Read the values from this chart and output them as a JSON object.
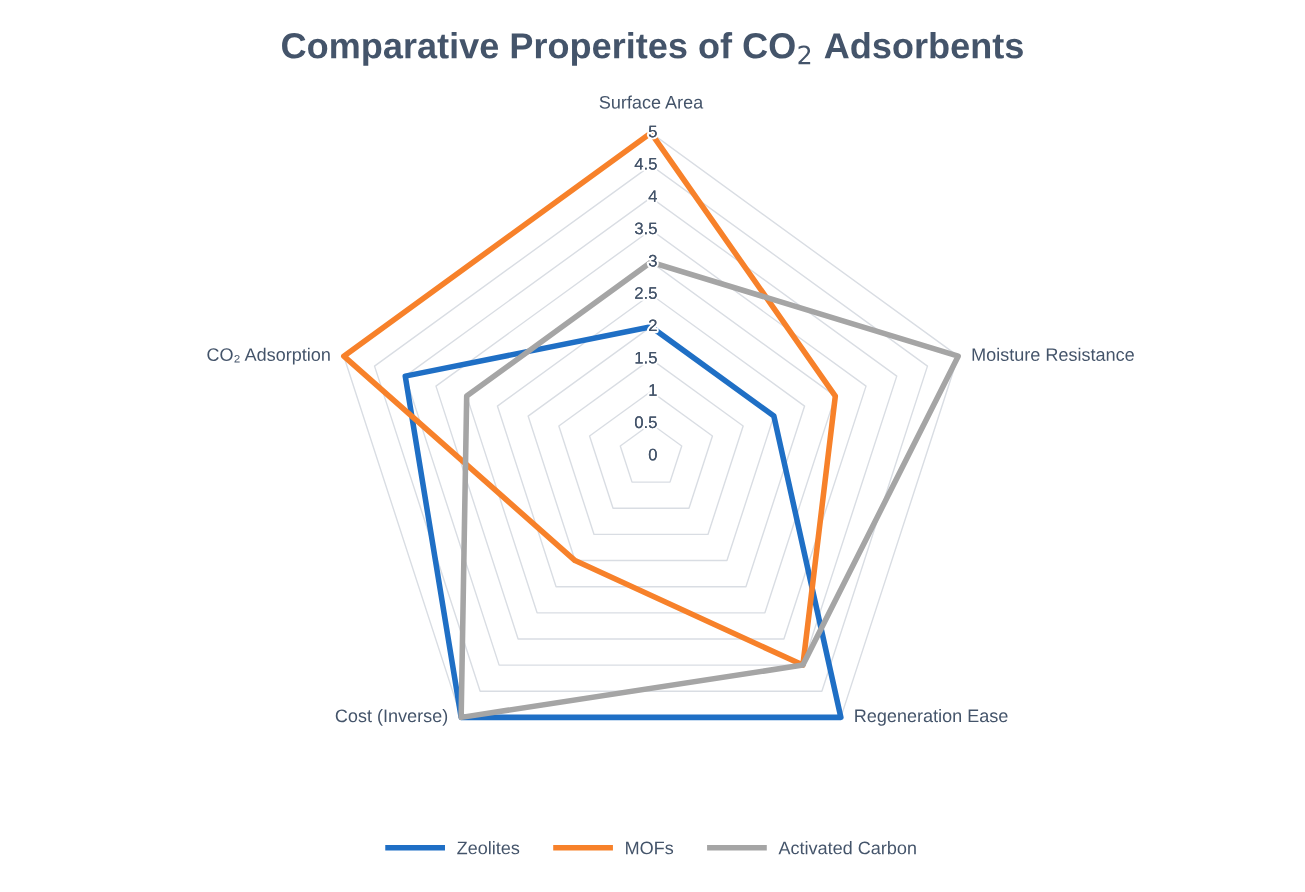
{
  "chart_data": {
    "type": "radar",
    "title": "Comparative Properites of CO$_{2}$ Adsorbents",
    "categories": [
      "Surface Area",
      "Moisture Resistance",
      "Regeneration Ease",
      "Cost (Inverse)",
      "CO₂ Adsorption"
    ],
    "series": [
      {
        "name": "Zeolites",
        "color": "#1f6fc5",
        "values": [
          2,
          2,
          5,
          5,
          4
        ]
      },
      {
        "name": "MOFs",
        "color": "#f7812a",
        "values": [
          5,
          3,
          4,
          2,
          5
        ]
      },
      {
        "name": "Activated Carbon",
        "color": "#a5a5a5",
        "values": [
          3,
          5,
          4,
          5,
          3
        ]
      }
    ],
    "ylim": [
      0,
      5
    ],
    "yticks": [
      0,
      0.5,
      1,
      1.5,
      2,
      2.5,
      3,
      3.5,
      4,
      4.5,
      5
    ],
    "grid": true,
    "legend": "bottom",
    "marker": "none",
    "line_style": "solid"
  }
}
